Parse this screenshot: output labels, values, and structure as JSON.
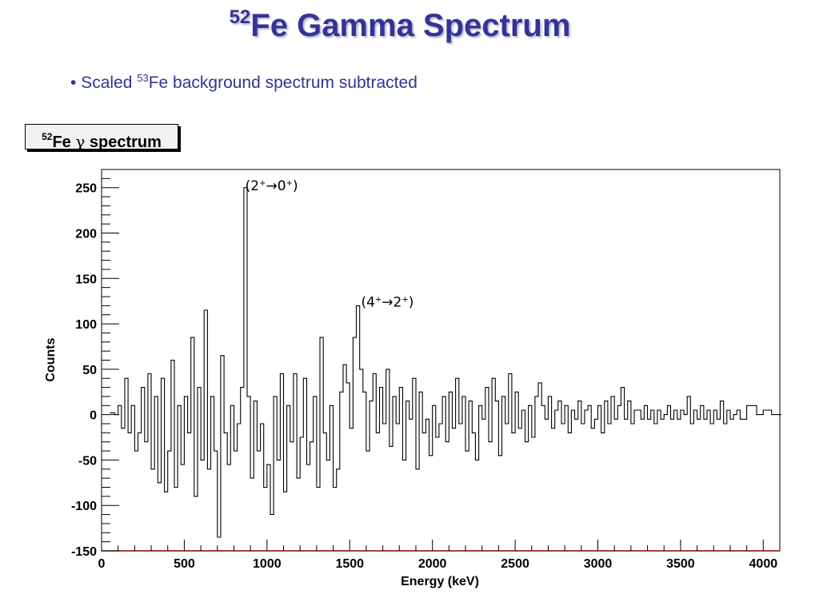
{
  "slide": {
    "title_sup": "52",
    "title_main": "Fe Gamma Spectrum",
    "bullet_prefix": "• Scaled ",
    "bullet_sup": "53",
    "bullet_main": "Fe background spectrum subtracted"
  },
  "histogram_box": {
    "sup": "52",
    "element": "Fe",
    "gamma": "γ",
    "text": "spectrum"
  },
  "colors": {
    "title": "#333399",
    "bullet": "#333399",
    "frame_bottom": "#8b0000",
    "trace": "#000000"
  },
  "chart_data": {
    "type": "line",
    "step": true,
    "title": "",
    "xlabel": "Energy (keV)",
    "ylabel": "Counts",
    "xlim": [
      0,
      4100
    ],
    "ylim": [
      -150,
      270
    ],
    "x_ticks": [
      0,
      500,
      1000,
      1500,
      2000,
      2500,
      3000,
      3500,
      4000
    ],
    "y_ticks": [
      -150,
      -100,
      -50,
      0,
      50,
      100,
      150,
      200,
      250
    ],
    "grid": false,
    "annotations": [
      {
        "label": "(2",
        "sup1": "+",
        "arrow": "→0",
        "sup2": "+",
        "close": ")",
        "x": 830,
        "y": 248
      },
      {
        "label": "(4",
        "sup1": "+",
        "arrow": "→2",
        "sup2": "+",
        "close": ")",
        "x": 1530,
        "y": 120
      }
    ],
    "series": [
      {
        "x": [
          50,
          80,
          100,
          120,
          140,
          160,
          180,
          200,
          220,
          240,
          260,
          280,
          300,
          320,
          340,
          360,
          380,
          400,
          420,
          440,
          460,
          480,
          500,
          520,
          540,
          560,
          580,
          600,
          620,
          640,
          660,
          680,
          700,
          720,
          740,
          760,
          780,
          800,
          820,
          840,
          860,
          880,
          900,
          920,
          940,
          960,
          980,
          1000,
          1020,
          1040,
          1060,
          1080,
          1100,
          1120,
          1140,
          1160,
          1180,
          1200,
          1220,
          1240,
          1260,
          1280,
          1300,
          1320,
          1340,
          1360,
          1380,
          1400,
          1420,
          1440,
          1460,
          1480,
          1500,
          1520,
          1540,
          1560,
          1580,
          1600,
          1620,
          1640,
          1660,
          1680,
          1700,
          1720,
          1740,
          1760,
          1780,
          1800,
          1820,
          1840,
          1860,
          1880,
          1900,
          1920,
          1940,
          1960,
          1980,
          2000,
          2020,
          2040,
          2060,
          2080,
          2100,
          2120,
          2140,
          2160,
          2180,
          2200,
          2220,
          2240,
          2260,
          2280,
          2300,
          2320,
          2340,
          2360,
          2380,
          2400,
          2420,
          2440,
          2460,
          2480,
          2500,
          2520,
          2540,
          2560,
          2580,
          2600,
          2620,
          2640,
          2660,
          2680,
          2700,
          2720,
          2740,
          2760,
          2780,
          2800,
          2820,
          2840,
          2860,
          2880,
          2900,
          2920,
          2940,
          2960,
          2980,
          3000,
          3020,
          3040,
          3060,
          3080,
          3100,
          3120,
          3140,
          3160,
          3180,
          3200,
          3220,
          3240,
          3260,
          3280,
          3300,
          3320,
          3340,
          3360,
          3380,
          3400,
          3420,
          3440,
          3460,
          3480,
          3500,
          3520,
          3540,
          3560,
          3580,
          3600,
          3620,
          3640,
          3660,
          3680,
          3700,
          3720,
          3740,
          3760,
          3780,
          3800,
          3820,
          3840,
          3860,
          3900,
          3960,
          4000,
          4050,
          4090
        ],
        "y": [
          2,
          0,
          10,
          -15,
          40,
          -20,
          10,
          -40,
          -20,
          30,
          -30,
          45,
          -60,
          20,
          -75,
          40,
          -85,
          -40,
          60,
          -80,
          10,
          -55,
          20,
          -20,
          85,
          -90,
          30,
          -50,
          115,
          -60,
          20,
          -40,
          -135,
          65,
          -20,
          -55,
          10,
          -40,
          -10,
          30,
          250,
          20,
          -70,
          15,
          -40,
          -10,
          -80,
          -55,
          -110,
          20,
          -50,
          45,
          -85,
          10,
          -30,
          45,
          -70,
          -25,
          40,
          -55,
          -30,
          20,
          -80,
          85,
          -20,
          -50,
          10,
          -80,
          -60,
          25,
          55,
          35,
          -15,
          85,
          120,
          50,
          25,
          -40,
          15,
          45,
          -20,
          30,
          -10,
          50,
          -35,
          20,
          -10,
          30,
          -50,
          15,
          -5,
          40,
          -60,
          25,
          -20,
          -5,
          -45,
          10,
          -25,
          -10,
          20,
          -30,
          25,
          -15,
          40,
          -10,
          20,
          -40,
          15,
          -20,
          -50,
          10,
          -5,
          30,
          -30,
          40,
          15,
          -45,
          20,
          -10,
          45,
          -20,
          25,
          -15,
          5,
          -30,
          10,
          -25,
          20,
          35,
          10,
          -5,
          20,
          -15,
          5,
          15,
          -10,
          10,
          -20,
          5,
          -5,
          15,
          -10,
          5,
          10,
          -15,
          -5,
          10,
          -20,
          15,
          -10,
          20,
          -5,
          10,
          30,
          -5,
          15,
          -10,
          5,
          5,
          -5,
          10,
          -5,
          5,
          -10,
          5,
          -5,
          0,
          10,
          -5,
          5,
          -5,
          5,
          0,
          20,
          -10,
          5,
          -5,
          10,
          -5,
          5,
          -10,
          5,
          -5,
          15,
          -10,
          5,
          -5,
          0,
          5,
          -5,
          10,
          0,
          5,
          0,
          0
        ]
      }
    ]
  }
}
